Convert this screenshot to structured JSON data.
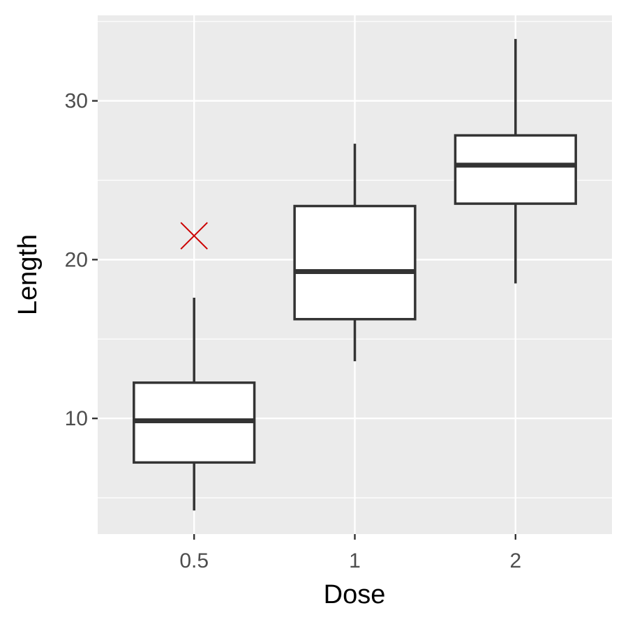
{
  "chart_data": {
    "type": "boxplot",
    "x_label": "Dose",
    "y_label": "Length",
    "categories": [
      "0.5",
      "1",
      "2"
    ],
    "boxes": [
      {
        "min": 4.2,
        "q1": 7.225,
        "median": 9.85,
        "q3": 12.25,
        "max": 17.6,
        "outliers": [
          21.5
        ]
      },
      {
        "min": 13.6,
        "q1": 16.25,
        "median": 19.25,
        "q3": 23.375,
        "max": 27.3
      },
      {
        "min": 18.5,
        "q1": 23.525,
        "median": 25.95,
        "q3": 27.825,
        "max": 33.9
      }
    ],
    "box_color": "#333333",
    "box_fill": "#ffffff",
    "outlier_color": "#cc0000",
    "ylim": [
      2.715,
      35.385
    ],
    "yticks": [
      10,
      20,
      30
    ],
    "minor_yticks": [
      5,
      15,
      25,
      35
    ],
    "grid": true
  }
}
